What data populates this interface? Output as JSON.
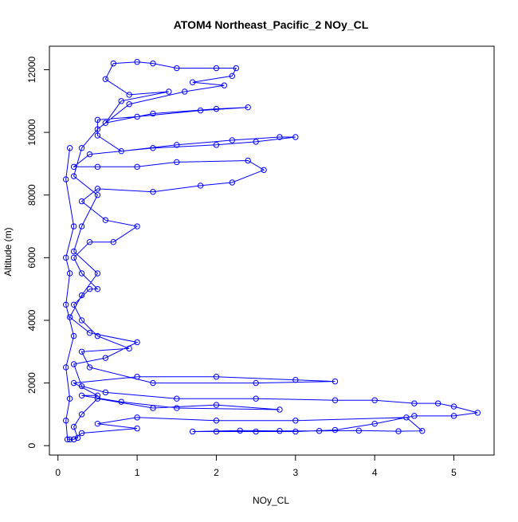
{
  "chart_data": {
    "type": "scatter",
    "title": "ATOM4 Northeast_Pacific_2 NOy_CL",
    "x_label": "NOy_CL",
    "y_label": "Altitude (m)",
    "series": [
      {
        "name": "NOy_CL",
        "color": "#0000ff",
        "x": [
          0.15,
          0.2,
          0.25,
          0.2,
          0.3,
          0.5,
          1.2,
          2.0,
          2.8,
          1.5,
          0.8,
          0.3,
          0.5,
          0.2,
          1.0,
          2.0,
          3.0,
          3.5,
          2.5,
          1.2,
          0.4,
          0.3,
          0.9,
          0.5,
          0.3,
          0.2,
          0.4,
          0.5,
          0.3,
          0.2,
          0.4,
          0.7,
          1.0,
          0.6,
          0.3,
          0.5,
          1.2,
          1.8,
          2.2,
          2.6,
          2.4,
          1.5,
          1.0,
          0.5,
          0.2,
          0.4,
          1.2,
          2.0,
          2.5,
          3.0,
          2.8,
          2.2,
          1.5,
          0.8,
          0.5,
          0.5,
          1.0,
          1.8,
          2.4,
          2.0,
          1.2,
          0.6,
          0.8,
          1.4,
          0.9,
          0.6,
          0.7,
          1.0,
          1.2,
          1.5,
          2.0,
          2.25,
          2.2,
          1.7,
          2.1,
          1.6,
          0.9,
          0.5,
          0.3,
          0.2,
          0.5,
          0.3,
          0.2,
          0.5,
          0.3,
          0.15,
          0.4,
          1.0,
          0.6,
          0.2,
          0.3,
          0.6,
          1.5,
          2.5,
          3.5,
          4.0,
          4.5,
          4.8,
          5.0,
          5.3,
          5.0,
          4.5,
          4.0,
          3.5,
          3.0,
          2.5,
          2.0,
          1.7,
          2.3,
          2.8,
          3.3,
          3.8,
          4.3,
          4.6,
          4.4,
          3.0,
          2.0,
          1.0,
          0.5,
          1.0,
          0.3,
          0.2,
          0.12,
          0.1,
          0.15,
          0.1,
          0.2,
          0.1,
          0.15,
          0.1,
          0.2,
          0.1,
          0.15
        ],
        "values": [
          200,
          200,
          250,
          600,
          1000,
          1500,
          1200,
          1300,
          1150,
          1200,
          1400,
          1600,
          1600,
          2000,
          2200,
          2200,
          2100,
          2050,
          2000,
          2000,
          2500,
          3000,
          3100,
          3500,
          4000,
          4500,
          5000,
          5000,
          5500,
          6000,
          6500,
          6500,
          7000,
          7200,
          7800,
          8200,
          8100,
          8300,
          8400,
          8800,
          9100,
          9050,
          8900,
          8900,
          8900,
          9300,
          9500,
          9600,
          9700,
          9850,
          9850,
          9750,
          9600,
          9400,
          9900,
          10400,
          10500,
          10700,
          10800,
          10750,
          10600,
          10300,
          11000,
          11300,
          11200,
          11700,
          12200,
          12250,
          12200,
          12050,
          12050,
          12050,
          11800,
          11600,
          11500,
          11300,
          10900,
          10100,
          9500,
          8600,
          8000,
          7000,
          6200,
          5500,
          4800,
          4100,
          3600,
          3300,
          2800,
          2600,
          1900,
          1700,
          1500,
          1500,
          1450,
          1450,
          1350,
          1350,
          1250,
          1050,
          950,
          950,
          700,
          500,
          450,
          450,
          450,
          450,
          480,
          470,
          470,
          480,
          460,
          470,
          900,
          800,
          800,
          900,
          700,
          550,
          400,
          200,
          200,
          800,
          1500,
          2500,
          3500,
          4500,
          5500,
          6000,
          7000,
          8500,
          9500
        ]
      }
    ],
    "xlim": [
      -0.108,
      5.508
    ],
    "ylim": [
      -300,
      12750
    ],
    "xticks": [
      0,
      1,
      2,
      3,
      4,
      5
    ],
    "yticks": [
      0,
      2000,
      4000,
      6000,
      8000,
      10000,
      12000
    ]
  }
}
